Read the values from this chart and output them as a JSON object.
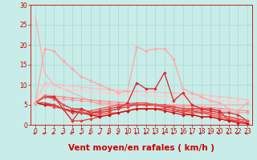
{
  "background_color": "#c8ece8",
  "grid_color": "#a8d8d4",
  "xlim": [
    -0.5,
    23.5
  ],
  "ylim": [
    0,
    30
  ],
  "xticks": [
    0,
    1,
    2,
    3,
    4,
    5,
    6,
    7,
    8,
    9,
    10,
    11,
    12,
    13,
    14,
    15,
    16,
    17,
    18,
    19,
    20,
    21,
    22,
    23
  ],
  "yticks": [
    0,
    5,
    10,
    15,
    20,
    25,
    30
  ],
  "xlabel": "Vent moyen/en rafales ( km/h )",
  "tick_fontsize": 5.5,
  "xlabel_fontsize": 7.5,
  "tick_color": "#cc0000",
  "label_color": "#cc0000",
  "series": [
    {
      "x": [
        0,
        1,
        2,
        3,
        4,
        5,
        6,
        7,
        8,
        9,
        10,
        11,
        12,
        13,
        14,
        15,
        16,
        17,
        18,
        19,
        20,
        21,
        22,
        23
      ],
      "y": [
        27,
        13,
        10,
        9,
        8,
        7,
        6,
        5,
        5,
        5,
        5,
        5,
        5,
        5,
        5,
        5,
        5,
        5,
        5,
        5,
        5,
        5,
        5,
        5
      ],
      "color": "#ffaaaa",
      "linewidth": 0.8,
      "marker": null,
      "zorder": 2
    },
    {
      "x": [
        0,
        1,
        2,
        3,
        4,
        5,
        6,
        7,
        8,
        9,
        10,
        11,
        12,
        13,
        14,
        15,
        16,
        17,
        18,
        19,
        20,
        21,
        22,
        23
      ],
      "y": [
        5.5,
        10.5,
        10.3,
        10.0,
        9.8,
        9.5,
        9.2,
        9.0,
        8.8,
        8.7,
        8.5,
        8.4,
        8.3,
        8.2,
        8.1,
        8.0,
        7.8,
        7.7,
        7.5,
        7.3,
        7.1,
        6.9,
        6.5,
        6.2
      ],
      "color": "#ffbbbb",
      "linewidth": 0.8,
      "marker": "D",
      "markersize": 1.8,
      "zorder": 2
    },
    {
      "x": [
        0,
        1,
        2,
        3,
        4,
        5,
        6,
        7,
        8,
        9,
        10,
        11,
        12,
        13,
        14,
        15,
        16,
        17,
        18,
        19,
        20,
        21,
        22,
        23
      ],
      "y": [
        5.5,
        9.5,
        9.2,
        9.0,
        8.7,
        8.5,
        8.2,
        8.0,
        7.8,
        7.7,
        7.5,
        7.4,
        7.3,
        7.2,
        7.0,
        6.9,
        6.8,
        6.7,
        6.5,
        6.3,
        6.1,
        5.9,
        5.6,
        5.5
      ],
      "color": "#ffcccc",
      "linewidth": 0.8,
      "marker": "D",
      "markersize": 1.8,
      "zorder": 2
    },
    {
      "x": [
        0,
        1,
        2,
        3,
        4,
        5,
        6,
        7,
        8,
        9,
        10,
        11,
        12,
        13,
        14,
        15,
        16,
        17,
        18,
        19,
        20,
        21,
        22,
        23
      ],
      "y": [
        5.5,
        7.5,
        7.2,
        7.0,
        6.7,
        6.5,
        6.2,
        6.0,
        5.8,
        5.7,
        5.5,
        5.4,
        5.3,
        5.2,
        5.0,
        4.9,
        4.8,
        4.7,
        4.5,
        4.3,
        4.1,
        3.9,
        3.6,
        3.5
      ],
      "color": "#ff8888",
      "linewidth": 0.8,
      "marker": "D",
      "markersize": 1.8,
      "zorder": 2
    },
    {
      "x": [
        0,
        1,
        2,
        3,
        4,
        5,
        6,
        7,
        8,
        9,
        10,
        11,
        12,
        13,
        14,
        15,
        16,
        17,
        18,
        19,
        20,
        21,
        22,
        23
      ],
      "y": [
        5.5,
        7.0,
        6.8,
        6.5,
        6.2,
        6.0,
        5.8,
        5.5,
        5.3,
        5.2,
        5.0,
        4.9,
        4.8,
        4.7,
        4.5,
        4.4,
        4.3,
        4.1,
        3.9,
        3.7,
        3.5,
        3.3,
        3.1,
        3.0
      ],
      "color": "#ff9999",
      "linewidth": 0.8,
      "marker": "D",
      "markersize": 1.8,
      "zorder": 2
    },
    {
      "x": [
        0,
        1,
        2,
        3,
        4,
        5,
        6,
        7,
        8,
        9,
        10,
        11,
        12,
        13,
        14,
        15,
        16,
        17,
        18,
        19,
        20,
        21,
        22,
        23
      ],
      "y": [
        5.5,
        7,
        7,
        4,
        1,
        4,
        3,
        3.5,
        4,
        4.5,
        5,
        5,
        5,
        5,
        4.5,
        4.5,
        4,
        4,
        4,
        3.5,
        3,
        3,
        2.5,
        1
      ],
      "color": "#cc3333",
      "linewidth": 0.9,
      "marker": "D",
      "markersize": 1.8,
      "zorder": 3
    },
    {
      "x": [
        0,
        1,
        2,
        3,
        4,
        5,
        6,
        7,
        8,
        9,
        10,
        11,
        12,
        13,
        14,
        15,
        16,
        17,
        18,
        19,
        20,
        21,
        22,
        23
      ],
      "y": [
        5.5,
        7,
        7,
        5,
        4,
        4,
        3,
        3,
        3.5,
        4,
        5.5,
        10.5,
        9,
        9,
        13,
        6,
        8,
        5,
        4,
        4,
        3.5,
        1,
        1,
        0.5
      ],
      "color": "#dd2222",
      "linewidth": 0.9,
      "marker": "D",
      "markersize": 1.8,
      "zorder": 3
    },
    {
      "x": [
        0,
        1,
        2,
        3,
        4,
        5,
        6,
        7,
        8,
        9,
        10,
        11,
        12,
        13,
        14,
        15,
        16,
        17,
        18,
        19,
        20,
        21,
        22,
        23
      ],
      "y": [
        5.5,
        5,
        5,
        4,
        1,
        1,
        1.5,
        2,
        2.5,
        3,
        3.5,
        4,
        4,
        4,
        4,
        3.5,
        3,
        2.5,
        2,
        2,
        1.5,
        1,
        1,
        0.5
      ],
      "color": "#ee3333",
      "linewidth": 0.9,
      "marker": "D",
      "markersize": 1.8,
      "zorder": 3
    },
    {
      "x": [
        0,
        1,
        2,
        3,
        4,
        5,
        6,
        7,
        8,
        9,
        10,
        11,
        12,
        13,
        14,
        15,
        16,
        17,
        18,
        19,
        20,
        21,
        22,
        23
      ],
      "y": [
        5.5,
        5,
        4.5,
        4,
        3.5,
        3,
        2.5,
        2.5,
        3,
        3,
        3.5,
        4,
        4,
        4,
        4,
        3.5,
        3.5,
        3,
        3,
        2.5,
        2,
        1.5,
        1,
        0.5
      ],
      "color": "#ff4444",
      "linewidth": 0.9,
      "marker": "D",
      "markersize": 1.8,
      "zorder": 3
    },
    {
      "x": [
        0,
        1,
        2,
        3,
        4,
        5,
        6,
        7,
        8,
        9,
        10,
        11,
        12,
        13,
        14,
        15,
        16,
        17,
        18,
        19,
        20,
        21,
        22,
        23
      ],
      "y": [
        5.5,
        5,
        5,
        4,
        3.5,
        3,
        2.5,
        2,
        2.5,
        3,
        3.5,
        4,
        4,
        4,
        3.5,
        3,
        2.5,
        2.5,
        2,
        2,
        1.5,
        1,
        0.5,
        0.3
      ],
      "color": "#cc1111",
      "linewidth": 0.9,
      "marker": "D",
      "markersize": 1.8,
      "zorder": 3
    },
    {
      "x": [
        0,
        1,
        2,
        3,
        4,
        5,
        6,
        7,
        8,
        9,
        10,
        11,
        12,
        13,
        14,
        15,
        16,
        17,
        18,
        19,
        20,
        21,
        22,
        23
      ],
      "y": [
        5.5,
        5.5,
        5,
        4,
        3,
        3,
        3,
        3,
        3.5,
        4,
        4.5,
        5,
        5,
        5,
        4.5,
        4,
        3.5,
        3.5,
        3,
        3,
        2.5,
        2,
        1.5,
        1
      ],
      "color": "#dd4444",
      "linewidth": 0.9,
      "marker": "D",
      "markersize": 1.8,
      "zorder": 3
    },
    {
      "x": [
        0,
        1,
        2,
        3,
        4,
        5,
        6,
        7,
        8,
        9,
        10,
        11,
        12,
        13,
        14,
        15,
        16,
        17,
        18,
        19,
        20,
        21,
        22,
        23
      ],
      "y": [
        5.5,
        7,
        6.5,
        5,
        4,
        3.5,
        3.5,
        4,
        4.5,
        5,
        5,
        5.5,
        5.5,
        5,
        5,
        4.5,
        4,
        3.5,
        3.5,
        3,
        2.5,
        2,
        1.5,
        1
      ],
      "color": "#ee5555",
      "linewidth": 0.9,
      "marker": "D",
      "markersize": 1.8,
      "zorder": 3
    },
    {
      "x": [
        0,
        1,
        2,
        3,
        4,
        5,
        6,
        7,
        8,
        9,
        10,
        11,
        12,
        13,
        14,
        15,
        16,
        17,
        18,
        19,
        20,
        21,
        22,
        23
      ],
      "y": [
        5.5,
        19,
        18.5,
        16,
        14,
        12,
        11,
        10,
        9,
        8,
        8.5,
        19.5,
        18.5,
        19,
        19,
        16.5,
        9,
        8,
        7,
        6,
        5.5,
        4,
        3.5,
        5.5
      ],
      "color": "#ffaaaa",
      "linewidth": 1.0,
      "marker": "D",
      "markersize": 2.0,
      "zorder": 4
    }
  ],
  "arrows": [
    0,
    1,
    2,
    3,
    4,
    5,
    6,
    7,
    8,
    9,
    10,
    11,
    12,
    13,
    14,
    15,
    16,
    17,
    18,
    19,
    20,
    21,
    22,
    23
  ]
}
